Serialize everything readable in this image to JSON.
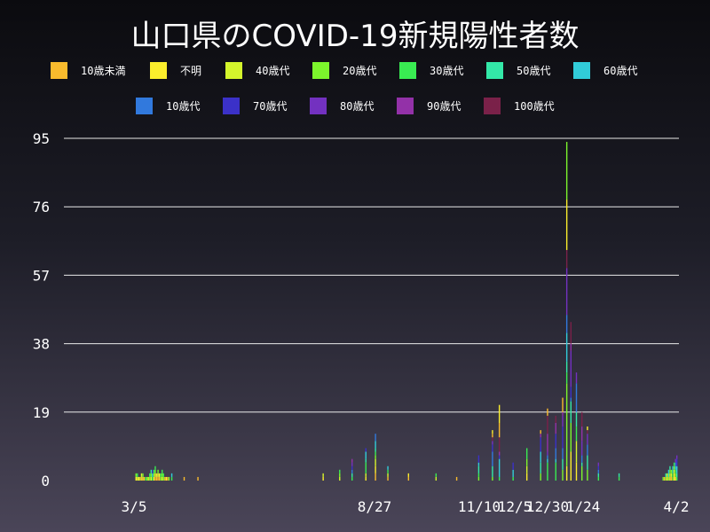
{
  "chart_data": {
    "type": "bar",
    "stacked": true,
    "title": "山口県のCOVID-19新規陽性者数",
    "ylim": [
      0,
      95
    ],
    "yticks": [
      0,
      19,
      38,
      57,
      76,
      95
    ],
    "xticks": [
      "3/5",
      "8/27",
      "11/10",
      "12/5",
      "12/30",
      "1/24",
      "4/2"
    ],
    "grid": "horizontal",
    "legend_position": "top",
    "series": [
      {
        "name": "10歳未満",
        "color": "#f9bb2d"
      },
      {
        "name": "不明",
        "color": "#fbee2c"
      },
      {
        "name": "40歳代",
        "color": "#d4f52c"
      },
      {
        "name": "20歳代",
        "color": "#7cf52c"
      },
      {
        "name": "30歳代",
        "color": "#39ec52"
      },
      {
        "name": "50歳代",
        "color": "#33e8a8"
      },
      {
        "name": "60歳代",
        "color": "#31ccd9"
      },
      {
        "name": "10歳代",
        "color": "#3179dd"
      },
      {
        "name": "70歳代",
        "color": "#3b31c8"
      },
      {
        "name": "80歳代",
        "color": "#7331c0"
      },
      {
        "name": "90歳代",
        "color": "#9331a8"
      },
      {
        "name": "100歳代",
        "color": "#7a2149"
      }
    ],
    "approx_daily_totals": [
      {
        "date": "3/5",
        "total": 0
      },
      {
        "date": "3/6",
        "total": 2
      },
      {
        "date": "3/15",
        "total": 1
      },
      {
        "date": "3/25",
        "total": 3
      },
      {
        "date": "4/1",
        "total": 2
      },
      {
        "date": "4/10",
        "total": 1
      },
      {
        "date": "4/20",
        "total": 1
      },
      {
        "date": "7/20",
        "total": 2
      },
      {
        "date": "8/1",
        "total": 3
      },
      {
        "date": "8/10",
        "total": 6
      },
      {
        "date": "8/20",
        "total": 9
      },
      {
        "date": "8/27",
        "total": 13
      },
      {
        "date": "9/5",
        "total": 4
      },
      {
        "date": "9/20",
        "total": 2
      },
      {
        "date": "10/10",
        "total": 2
      },
      {
        "date": "10/25",
        "total": 1
      },
      {
        "date": "11/10",
        "total": 7
      },
      {
        "date": "11/20",
        "total": 14
      },
      {
        "date": "11/25",
        "total": 21
      },
      {
        "date": "12/5",
        "total": 5
      },
      {
        "date": "12/15",
        "total": 9
      },
      {
        "date": "12/25",
        "total": 14
      },
      {
        "date": "12/30",
        "total": 20
      },
      {
        "date": "1/5",
        "total": 18
      },
      {
        "date": "1/10",
        "total": 23
      },
      {
        "date": "1/13",
        "total": 94
      },
      {
        "date": "1/16",
        "total": 44
      },
      {
        "date": "1/20",
        "total": 30
      },
      {
        "date": "1/24",
        "total": 19
      },
      {
        "date": "1/28",
        "total": 15
      },
      {
        "date": "2/5",
        "total": 5
      },
      {
        "date": "2/20",
        "total": 2
      },
      {
        "date": "3/10",
        "total": 2
      },
      {
        "date": "3/20",
        "total": 4
      },
      {
        "date": "4/2",
        "total": 7
      }
    ]
  }
}
